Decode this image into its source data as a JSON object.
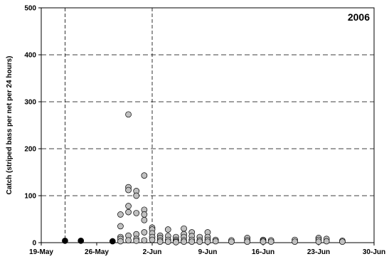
{
  "chart_data": {
    "type": "scatter",
    "title": "",
    "panel_label": "2006",
    "xlabel": "",
    "ylabel": "Catch (striped bass per net per 24 hours)",
    "x_axis_type": "date",
    "xlim": [
      "2006-05-19",
      "2006-06-30"
    ],
    "ylim": [
      0,
      500
    ],
    "x_ticks": [
      "2006-05-19",
      "2006-05-26",
      "2006-06-02",
      "2006-06-09",
      "2006-06-16",
      "2006-06-23",
      "2006-06-30"
    ],
    "x_tick_labels": [
      "19-May",
      "26-May",
      "2-Jun",
      "9-Jun",
      "16-Jun",
      "23-Jun",
      "30-Jun"
    ],
    "y_ticks": [
      0,
      100,
      200,
      300,
      400,
      500
    ],
    "y_tick_labels": [
      "0",
      "100",
      "200",
      "300",
      "400",
      "500"
    ],
    "gridlines_y": [
      100,
      200,
      300,
      400
    ],
    "vertical_dashed_lines": [
      "2006-05-22",
      "2006-06-02"
    ],
    "legend": "none",
    "colors": {
      "gray_marker_fill": "#c0c0c0",
      "black_marker_fill": "#000000",
      "marker_edge": "#000000"
    },
    "series": [
      {
        "marker": "black",
        "x": [
          "2006-05-22",
          "2006-05-24",
          "2006-05-28"
        ],
        "y": [
          4,
          4,
          3
        ]
      },
      {
        "marker": "gray",
        "x": [
          "2006-05-29",
          "2006-05-29",
          "2006-05-29",
          "2006-05-29",
          "2006-05-29",
          "2006-05-30",
          "2006-05-30",
          "2006-05-30",
          "2006-05-30",
          "2006-05-30",
          "2006-05-30",
          "2006-05-30",
          "2006-05-31",
          "2006-05-31",
          "2006-05-31",
          "2006-05-31",
          "2006-05-31",
          "2006-05-31",
          "2006-06-01",
          "2006-06-01",
          "2006-06-01",
          "2006-06-01",
          "2006-06-01",
          "2006-06-01",
          "2006-06-02",
          "2006-06-02",
          "2006-06-02",
          "2006-06-02",
          "2006-06-02",
          "2006-06-03",
          "2006-06-03",
          "2006-06-03",
          "2006-06-03",
          "2006-06-04",
          "2006-06-04",
          "2006-06-04",
          "2006-06-04",
          "2006-06-05",
          "2006-06-05",
          "2006-06-05",
          "2006-06-05",
          "2006-06-06",
          "2006-06-06",
          "2006-06-06",
          "2006-06-06",
          "2006-06-06",
          "2006-06-07",
          "2006-06-07",
          "2006-06-07",
          "2006-06-07",
          "2006-06-08",
          "2006-06-08",
          "2006-06-08",
          "2006-06-09",
          "2006-06-09",
          "2006-06-09",
          "2006-06-09",
          "2006-06-10",
          "2006-06-10",
          "2006-06-12",
          "2006-06-12",
          "2006-06-14",
          "2006-06-14",
          "2006-06-14",
          "2006-06-16",
          "2006-06-16",
          "2006-06-16",
          "2006-06-17",
          "2006-06-17",
          "2006-06-20",
          "2006-06-20",
          "2006-06-23",
          "2006-06-23",
          "2006-06-23",
          "2006-06-24",
          "2006-06-24",
          "2006-06-26",
          "2006-06-26"
        ],
        "y": [
          60,
          35,
          12,
          8,
          3,
          273,
          118,
          112,
          78,
          65,
          15,
          5,
          110,
          100,
          63,
          18,
          8,
          4,
          143,
          70,
          60,
          48,
          22,
          5,
          32,
          28,
          20,
          12,
          6,
          15,
          10,
          5,
          2,
          28,
          14,
          6,
          2,
          12,
          6,
          3,
          1,
          30,
          18,
          12,
          5,
          2,
          22,
          14,
          6,
          2,
          12,
          5,
          2,
          22,
          12,
          6,
          2,
          6,
          3,
          5,
          2,
          10,
          5,
          2,
          6,
          4,
          2,
          5,
          2,
          6,
          2,
          10,
          6,
          2,
          8,
          3,
          4,
          2
        ]
      }
    ]
  }
}
